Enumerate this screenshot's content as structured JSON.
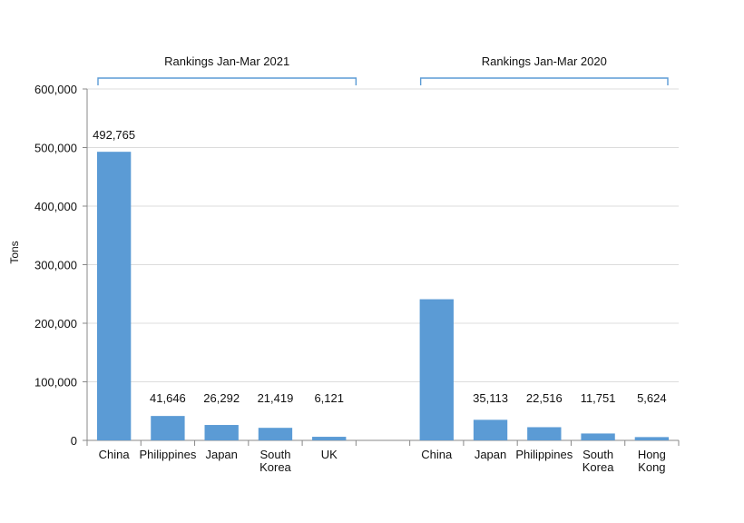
{
  "chart_data": {
    "type": "bar",
    "ylabel": "Tons",
    "ylim": [
      0,
      600000
    ],
    "yticks": [
      0,
      100000,
      200000,
      300000,
      400000,
      500000,
      600000
    ],
    "ytick_labels": [
      "0",
      "100,000",
      "200,000",
      "300,000",
      "400,000",
      "500,000",
      "600,000"
    ],
    "grid": true,
    "bar_color": "#5b9bd5",
    "bracket_color": "#5b9bd5",
    "groups": [
      {
        "title": "Rankings Jan-Mar 2021",
        "categories": [
          [
            "China"
          ],
          [
            "Philippines"
          ],
          [
            "Japan"
          ],
          [
            "South",
            "Korea"
          ],
          [
            "UK"
          ]
        ],
        "values": [
          492765,
          41646,
          26292,
          21419,
          6121
        ],
        "data_labels": [
          "492,765",
          "41,646",
          "26,292",
          "21,419",
          "6,121"
        ]
      },
      {
        "title": "Rankings Jan-Mar 2020",
        "categories": [
          [
            "China"
          ],
          [
            "Japan"
          ],
          [
            "Philippines"
          ],
          [
            "South",
            "Korea"
          ],
          [
            "Hong",
            "Kong"
          ]
        ],
        "values": [
          241000,
          35113,
          22516,
          11751,
          5624
        ],
        "data_labels": [
          "",
          "35,113",
          "22,516",
          "11,751",
          "5,624"
        ]
      }
    ]
  }
}
